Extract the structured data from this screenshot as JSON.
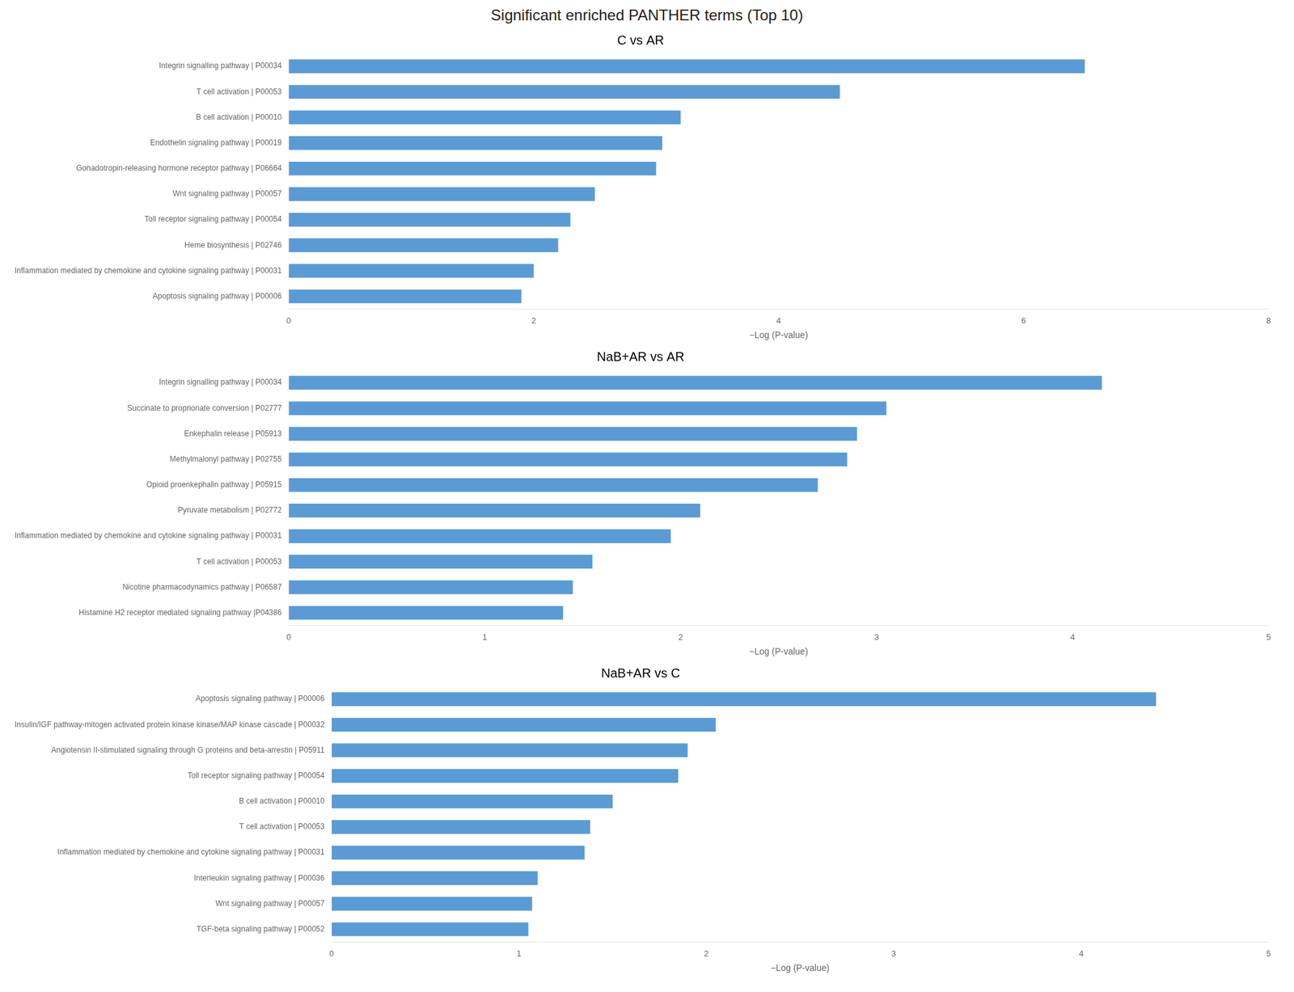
{
  "title": "Significant enriched PANTHER terms (Top 10)",
  "chart_data": [
    {
      "type": "bar",
      "orientation": "horizontal",
      "subtitle": "C vs AR",
      "categories": [
        "Integrin signalling pathway | P00034",
        "T cell activation | P00053",
        "B cell activation | P00010",
        "Endothelin signaling pathway | P00019",
        "Gonadotropin-releasing hormone receptor pathway | P06664",
        "Wnt signaling pathway | P00057",
        "Toll receptor signaling pathway | P00054",
        "Heme biosynthesis | P02746",
        "Inflammation mediated by chemokine and cytokine signaling pathway | P00031",
        "Apoptosis signaling pathway | P00006"
      ],
      "values": [
        6.5,
        4.5,
        3.2,
        3.05,
        3.0,
        2.5,
        2.3,
        2.2,
        2.0,
        1.9
      ],
      "color": "#5b9bd5",
      "xlabel": "−Log (P-value)",
      "xlim": [
        0,
        8
      ],
      "xticks": [
        0,
        2,
        4,
        6,
        8
      ],
      "grid": false
    },
    {
      "type": "bar",
      "orientation": "horizontal",
      "subtitle": "NaB+AR vs AR",
      "categories": [
        "Integrin signalling pathway | P00034",
        "Succinate to proprionate conversion | P02777",
        "Enkephalin release | P05913",
        "Methylmalonyl pathway | P02755",
        "Opioid proenkephalin pathway | P05915",
        "Pyruvate metabolism | P02772",
        "Inflammation mediated by chemokine and cytokine signaling pathway | P00031",
        "T cell activation | P00053",
        "Nicotine pharmacodynamics pathway | P06587",
        "Histamine H2 receptor mediated signaling pathway |P04386"
      ],
      "values": [
        4.15,
        3.05,
        2.9,
        2.85,
        2.7,
        2.1,
        1.95,
        1.55,
        1.45,
        1.4
      ],
      "color": "#5b9bd5",
      "xlabel": "−Log (P-value)",
      "xlim": [
        0,
        5
      ],
      "xticks": [
        0,
        1,
        2,
        3,
        4,
        5
      ],
      "grid": false
    },
    {
      "type": "bar",
      "orientation": "horizontal",
      "subtitle": "NaB+AR vs C",
      "categories": [
        "Apoptosis signaling pathway | P00006",
        "Insulin/IGF pathway-mitogen activated protein kinase kinase/MAP kinase cascade | P00032",
        "Angiotensin II-stimulated signaling through G proteins and beta-arrestin | P05911",
        "Toll receptor signaling pathway | P00054",
        "B cell activation | P00010",
        "T cell activation | P00053",
        "Inflammation mediated by chemokine and cytokine signaling pathway | P00031",
        "Interleukin signaling pathway | P00036",
        "Wnt signaling pathway | P00057",
        "TGF-beta signaling pathway | P00052"
      ],
      "values": [
        4.4,
        2.05,
        1.9,
        1.85,
        1.5,
        1.38,
        1.35,
        1.1,
        1.07,
        1.05
      ],
      "color": "#5b9bd5",
      "xlabel": "−Log (P-value)",
      "xlim": [
        0,
        5
      ],
      "xticks": [
        0,
        1,
        2,
        3,
        4,
        5
      ],
      "grid": false
    }
  ]
}
